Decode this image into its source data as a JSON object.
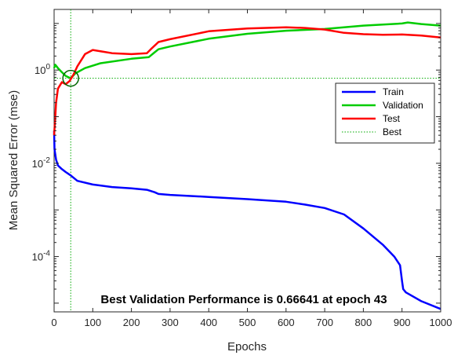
{
  "chart_data": {
    "type": "line",
    "title": "Best Validation Performance is 0.66641 at epoch 43",
    "xlabel": "Epochs",
    "ylabel": "Mean Squared Error  (mse)",
    "xlim": [
      0,
      1000
    ],
    "ylim": [
      6.5e-06,
      20
    ],
    "yscale": "log",
    "x_ticks": [
      0,
      100,
      200,
      300,
      400,
      500,
      600,
      700,
      800,
      900,
      1000
    ],
    "x_tick_labels": [
      "0",
      "100",
      "200",
      "300",
      "400",
      "500",
      "600",
      "700",
      "800",
      "900",
      "1000"
    ],
    "y_ticks": [
      1,
      0.01,
      0.0001
    ],
    "y_tick_labels": [
      {
        "base": "10",
        "exp": "0"
      },
      {
        "base": "10",
        "exp": "-2"
      },
      {
        "base": "10",
        "exp": "-4"
      }
    ],
    "grid": false,
    "legend_position": "right",
    "best": {
      "epoch": 43,
      "value": 0.66641
    },
    "series": [
      {
        "name": "Train",
        "color": "#0000ff",
        "x": [
          0,
          1,
          5,
          10,
          20,
          30,
          43,
          60,
          100,
          150,
          200,
          240,
          260,
          270,
          300,
          400,
          500,
          600,
          650,
          700,
          750,
          800,
          850,
          880,
          895,
          900,
          903,
          910,
          950,
          1000
        ],
        "y": [
          0.05,
          0.02,
          0.012,
          0.009,
          0.0075,
          0.0065,
          0.0055,
          0.0042,
          0.0035,
          0.0031,
          0.0029,
          0.0027,
          0.0024,
          0.0022,
          0.0021,
          0.0019,
          0.0017,
          0.0015,
          0.0013,
          0.0011,
          0.0008,
          0.0004,
          0.00018,
          0.0001,
          6.5e-05,
          3e-05,
          2e-05,
          1.7e-05,
          1.1e-05,
          7.5e-06
        ]
      },
      {
        "name": "Validation",
        "color": "#00cc00",
        "x": [
          0,
          3,
          10,
          20,
          30,
          43,
          55,
          80,
          120,
          200,
          245,
          260,
          270,
          300,
          400,
          500,
          600,
          700,
          800,
          900,
          915,
          950,
          1000
        ],
        "y": [
          1.1,
          1.3,
          1.1,
          0.9,
          0.75,
          0.66641,
          0.85,
          1.1,
          1.4,
          1.75,
          1.9,
          2.4,
          2.8,
          3.2,
          4.7,
          6.0,
          7.0,
          7.6,
          9.0,
          10.0,
          10.5,
          9.7,
          9.0
        ]
      },
      {
        "name": "Test",
        "color": "#ff0000",
        "x": [
          0,
          3,
          5,
          10,
          20,
          30,
          40,
          50,
          60,
          80,
          100,
          150,
          200,
          240,
          250,
          270,
          300,
          400,
          500,
          600,
          650,
          700,
          750,
          800,
          850,
          900,
          950,
          1000
        ],
        "y": [
          0.04,
          0.1,
          0.2,
          0.4,
          0.55,
          0.5,
          0.58,
          0.8,
          1.2,
          2.2,
          2.7,
          2.3,
          2.2,
          2.3,
          2.8,
          4.0,
          4.6,
          6.8,
          7.8,
          8.3,
          8.0,
          7.4,
          6.3,
          5.9,
          5.7,
          5.8,
          5.5,
          5.0
        ]
      }
    ],
    "legend": [
      {
        "label": "Train",
        "color": "#0000ff",
        "style": "solid"
      },
      {
        "label": "Validation",
        "color": "#00cc00",
        "style": "solid"
      },
      {
        "label": "Test",
        "color": "#ff0000",
        "style": "solid"
      },
      {
        "label": "Best",
        "color": "#00aa00",
        "style": "dotted"
      }
    ]
  }
}
